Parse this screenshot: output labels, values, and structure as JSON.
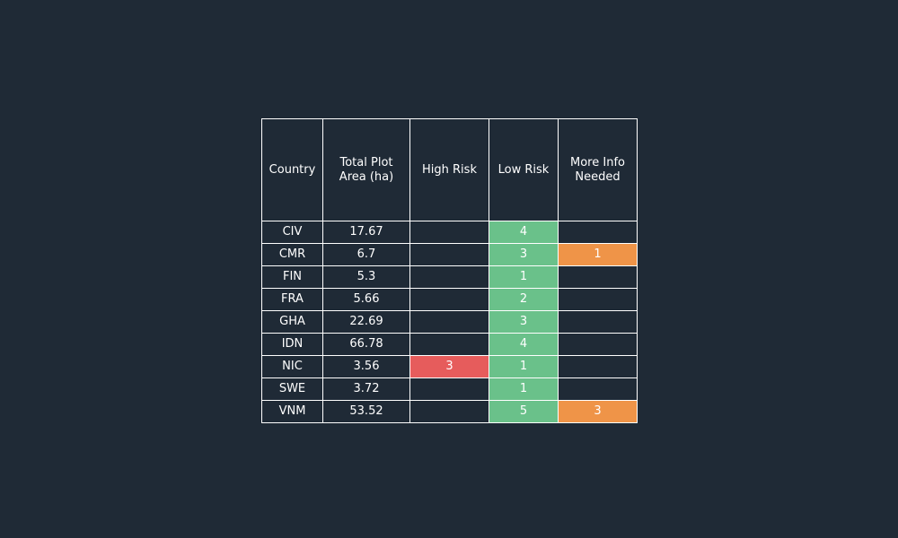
{
  "colors": {
    "background": "#1f2a36",
    "border": "#ffffff",
    "high_risk": "#e65c5c",
    "low_risk": "#6ac18a",
    "more_info": "#ef9448"
  },
  "chart_data": {
    "type": "table",
    "columns": [
      "Country",
      "Total Plot Area (ha)",
      "High Risk",
      "Low Risk",
      "More Info Needed"
    ],
    "rows": [
      {
        "country": "CIV",
        "area": "17.67",
        "high": "",
        "low": "4",
        "more": ""
      },
      {
        "country": "CMR",
        "area": "6.7",
        "high": "",
        "low": "3",
        "more": "1"
      },
      {
        "country": "FIN",
        "area": "5.3",
        "high": "",
        "low": "1",
        "more": ""
      },
      {
        "country": "FRA",
        "area": "5.66",
        "high": "",
        "low": "2",
        "more": ""
      },
      {
        "country": "GHA",
        "area": "22.69",
        "high": "",
        "low": "3",
        "more": ""
      },
      {
        "country": "IDN",
        "area": "66.78",
        "high": "",
        "low": "4",
        "more": ""
      },
      {
        "country": "NIC",
        "area": "3.56",
        "high": "3",
        "low": "1",
        "more": ""
      },
      {
        "country": "SWE",
        "area": "3.72",
        "high": "",
        "low": "1",
        "more": ""
      },
      {
        "country": "VNM",
        "area": "53.52",
        "high": "",
        "low": "5",
        "more": "3"
      }
    ]
  }
}
